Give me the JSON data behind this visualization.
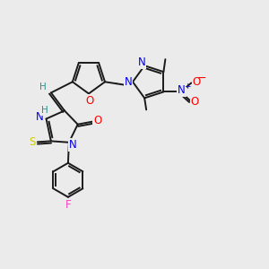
{
  "bg_color": "#ebebeb",
  "bond_color": "#1a1a1a",
  "colors": {
    "S": "#cccc00",
    "O": "#ff0000",
    "N": "#0000ee",
    "H": "#2a9090",
    "F": "#ff44bb",
    "C": "#1a1a1a",
    "Nplus": "#0000ee",
    "Ominus": "#ff0000"
  },
  "figsize": [
    3.0,
    3.0
  ],
  "dpi": 100
}
